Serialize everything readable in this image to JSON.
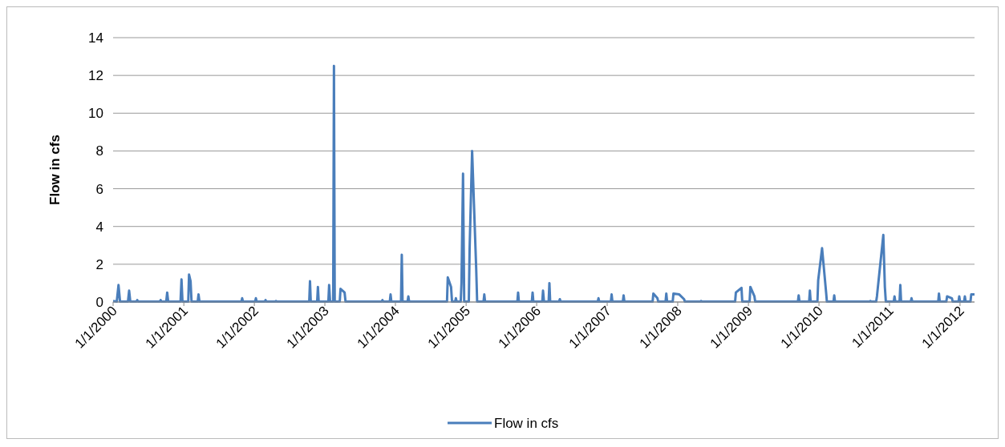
{
  "chart_data": {
    "type": "line",
    "ylabel": "Flow in cfs",
    "ylim": [
      0,
      14
    ],
    "yticks": [
      0,
      2,
      4,
      6,
      8,
      10,
      12,
      14
    ],
    "xlim": [
      "2000-01-01",
      "2012-03-16"
    ],
    "xticks": [
      {
        "value": "2000-01-01",
        "label": "1/1/2000"
      },
      {
        "value": "2001-01-01",
        "label": "1/1/2001"
      },
      {
        "value": "2002-01-01",
        "label": "1/1/2002"
      },
      {
        "value": "2003-01-01",
        "label": "1/1/2003"
      },
      {
        "value": "2004-01-01",
        "label": "1/1/2004"
      },
      {
        "value": "2005-01-01",
        "label": "1/1/2005"
      },
      {
        "value": "2006-01-01",
        "label": "1/1/2006"
      },
      {
        "value": "2007-01-01",
        "label": "1/1/2007"
      },
      {
        "value": "2008-01-01",
        "label": "1/1/2008"
      },
      {
        "value": "2009-01-01",
        "label": "1/1/2009"
      },
      {
        "value": "2010-01-01",
        "label": "1/1/2010"
      },
      {
        "value": "2011-01-01",
        "label": "1/1/2011"
      },
      {
        "value": "2012-01-01",
        "label": "1/1/2012"
      }
    ],
    "grid": "y",
    "legend": "bottom",
    "marker": "none",
    "line_style": "solid",
    "series": [
      {
        "name": "Flow in cfs",
        "color": "#4a7ebb",
        "x": [
          "2000-01-01",
          "2000-01-20",
          "2000-01-29",
          "2000-02-06",
          "2000-03-18",
          "2000-03-24",
          "2000-03-30",
          "2000-05-01",
          "2000-05-05",
          "2000-05-09",
          "2000-08-30",
          "2000-09-03",
          "2000-09-07",
          "2000-10-02",
          "2000-10-07",
          "2000-10-12",
          "2000-12-15",
          "2000-12-20",
          "2000-12-25",
          "2001-01-24",
          "2001-01-28",
          "2001-02-05",
          "2001-02-10",
          "2001-03-14",
          "2001-03-18",
          "2001-03-23",
          "2001-10-26",
          "2001-10-30",
          "2001-11-03",
          "2002-01-05",
          "2002-01-09",
          "2002-01-13",
          "2002-02-24",
          "2002-02-28",
          "2002-03-04",
          "2002-04-19",
          "2002-04-23",
          "2002-04-27",
          "2002-10-12",
          "2002-10-16",
          "2002-10-20",
          "2002-11-22",
          "2002-11-26",
          "2002-11-30",
          "2003-01-19",
          "2003-01-23",
          "2003-01-28",
          "2003-02-13",
          "2003-02-17",
          "2003-02-21",
          "2003-03-19",
          "2003-03-23",
          "2003-04-13",
          "2003-04-18",
          "2003-10-22",
          "2003-10-26",
          "2003-10-30",
          "2003-12-03",
          "2003-12-07",
          "2003-12-11",
          "2004-01-30",
          "2004-02-03",
          "2004-02-07",
          "2004-03-04",
          "2004-03-08",
          "2004-03-12",
          "2004-09-24",
          "2004-09-28",
          "2004-10-15",
          "2004-10-20",
          "2004-11-05",
          "2004-11-09",
          "2004-11-13",
          "2004-12-04",
          "2004-12-08",
          "2004-12-16",
          "2004-12-22",
          "2005-01-15",
          "2005-01-19",
          "2005-02-01",
          "2005-02-22",
          "2005-02-27",
          "2005-04-01",
          "2005-04-05",
          "2005-04-09",
          "2005-09-23",
          "2005-09-27",
          "2005-10-01",
          "2005-12-07",
          "2005-12-11",
          "2005-12-15",
          "2006-01-30",
          "2006-02-03",
          "2006-02-08",
          "2006-03-04",
          "2006-03-08",
          "2006-03-12",
          "2006-04-27",
          "2006-05-01",
          "2006-05-05",
          "2006-11-13",
          "2006-11-17",
          "2006-11-21",
          "2007-01-20",
          "2007-01-24",
          "2007-01-28",
          "2007-03-23",
          "2007-03-27",
          "2007-03-31",
          "2007-08-24",
          "2007-08-28",
          "2007-09-18",
          "2007-09-22",
          "2007-10-30",
          "2007-11-03",
          "2007-11-07",
          "2007-12-06",
          "2007-12-10",
          "2008-01-09",
          "2008-02-03",
          "2008-02-07",
          "2008-04-27",
          "2008-05-01",
          "2008-05-05",
          "2008-10-24",
          "2008-10-28",
          "2008-11-26",
          "2008-11-30",
          "2009-01-07",
          "2009-01-11",
          "2009-02-01",
          "2009-02-05",
          "2009-09-14",
          "2009-09-18",
          "2009-09-22",
          "2009-11-11",
          "2009-11-15",
          "2009-11-19",
          "2009-12-24",
          "2009-12-28",
          "2010-01-17",
          "2010-02-07",
          "2010-02-11",
          "2010-03-17",
          "2010-03-21",
          "2010-03-25",
          "2010-09-20",
          "2010-09-24",
          "2010-09-28",
          "2010-10-24",
          "2010-10-28",
          "2010-11-30",
          "2010-12-08",
          "2010-12-13",
          "2011-01-23",
          "2011-01-27",
          "2011-01-31",
          "2011-02-22",
          "2011-02-26",
          "2011-03-02",
          "2011-04-21",
          "2011-04-25",
          "2011-04-29",
          "2011-09-10",
          "2011-09-14",
          "2011-09-18",
          "2011-10-22",
          "2011-10-26",
          "2011-11-20",
          "2011-11-24",
          "2011-12-24",
          "2011-12-28",
          "2012-01-01",
          "2012-01-22",
          "2012-01-26",
          "2012-01-30",
          "2012-02-24",
          "2012-02-28",
          "2012-03-16"
        ],
        "values": [
          0.05,
          0.02,
          0.9,
          0.02,
          0.02,
          0.6,
          0.02,
          0.02,
          0.1,
          0.02,
          0.02,
          0.1,
          0.02,
          0.02,
          0.5,
          0.02,
          0.02,
          1.2,
          0.02,
          0.02,
          1.45,
          1.1,
          0.02,
          0.02,
          0.4,
          0.02,
          0.02,
          0.2,
          0.02,
          0.02,
          0.2,
          0.02,
          0.02,
          0.1,
          0.02,
          0.02,
          0.05,
          0.02,
          0.02,
          1.1,
          0.02,
          0.02,
          0.8,
          0.02,
          0.02,
          0.9,
          0.02,
          0.02,
          12.5,
          0.02,
          0.02,
          0.7,
          0.5,
          0.02,
          0.02,
          0.1,
          0.02,
          0.02,
          0.4,
          0.02,
          0.02,
          2.5,
          0.02,
          0.02,
          0.3,
          0.02,
          0.02,
          1.3,
          0.8,
          0.02,
          0.02,
          0.2,
          0.02,
          0.02,
          1,
          6.8,
          0.02,
          0.02,
          2.8,
          8,
          1.8,
          0.02,
          0.02,
          0.4,
          0.02,
          0.02,
          0.5,
          0.02,
          0.02,
          0.5,
          0.02,
          0.02,
          0.6,
          0.02,
          0.02,
          1,
          0.02,
          0.02,
          0.15,
          0.02,
          0.02,
          0.2,
          0.02,
          0.02,
          0.4,
          0.02,
          0.02,
          0.35,
          0.02,
          0.02,
          0.45,
          0.2,
          0.02,
          0.02,
          0.45,
          0.02,
          0.02,
          0.45,
          0.4,
          0.15,
          0.02,
          0.02,
          0.05,
          0.02,
          0.02,
          0.5,
          0.75,
          0.02,
          0.02,
          0.8,
          0.3,
          0.02,
          0.02,
          0.35,
          0.02,
          0.02,
          0.6,
          0.02,
          0.02,
          1.15,
          2.85,
          0.5,
          0.02,
          0.02,
          0.35,
          0.02,
          0.02,
          0.05,
          0.02,
          0.02,
          0.3,
          3.55,
          0.8,
          0.02,
          0.02,
          0.3,
          0.02,
          0.02,
          0.9,
          0.02,
          0.02,
          0.2,
          0.02,
          0.02,
          0.45,
          0.02,
          0.02,
          0.3,
          0.2,
          0.02,
          0.02,
          0.3,
          0.02,
          0.02,
          0.3,
          0.02,
          0.02,
          0.4,
          0.4
        ]
      }
    ]
  }
}
